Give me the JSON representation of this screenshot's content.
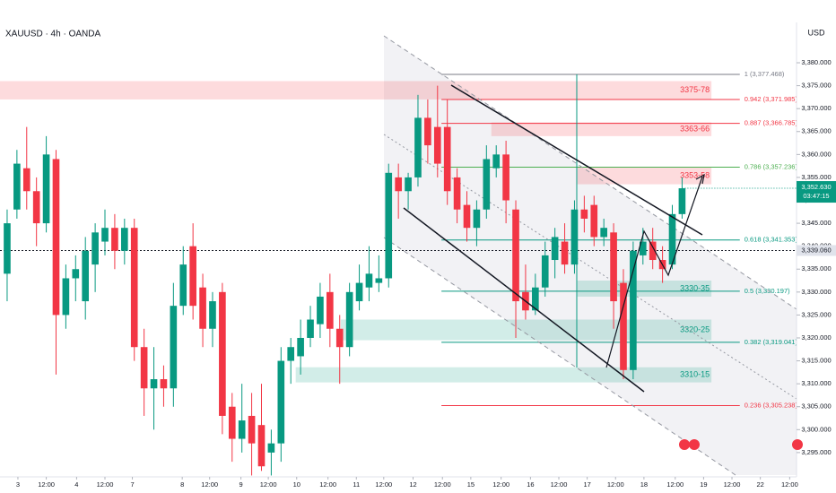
{
  "header": {
    "symbol": "XAUUSD · 4h · OANDA",
    "currency": "USD"
  },
  "chart_data": {
    "type": "candlestick",
    "x": [
      0,
      1,
      2,
      3,
      4,
      5,
      6,
      7,
      8,
      9,
      10,
      11,
      12,
      13,
      14,
      15,
      16,
      17,
      18,
      19,
      20,
      21,
      22,
      23,
      24,
      25,
      26,
      27,
      28,
      29,
      30,
      31,
      32,
      33,
      34,
      35,
      36,
      37,
      38,
      39,
      40,
      41,
      42,
      43,
      44,
      45,
      46,
      47,
      48,
      49,
      50,
      51,
      52,
      53,
      54,
      55,
      56,
      57,
      58,
      59,
      60,
      61,
      62,
      63,
      64,
      65,
      66,
      67,
      68,
      69
    ],
    "open": [
      3334,
      3348,
      3357,
      3352,
      3345,
      3359,
      3325,
      3333,
      3328,
      3336,
      3341,
      3344,
      3339,
      3344,
      3318,
      3309,
      3311,
      3309,
      3327,
      3340,
      3331,
      3322,
      3330,
      3305,
      3298,
      3303,
      3301,
      3295,
      3297,
      3315,
      3316,
      3320,
      3323,
      3330,
      3322,
      3318,
      3328,
      3331,
      3332,
      3333,
      3355,
      3352,
      3355,
      3368,
      3366,
      3366,
      3355,
      3349,
      3344,
      3348,
      3357,
      3360,
      3348,
      3330,
      3326,
      3331,
      3337,
      3341,
      3336,
      3348,
      3349,
      3342,
      3343,
      3332,
      3313,
      3338,
      3341,
      3337,
      3336,
      3347
    ],
    "high": [
      3348,
      3361,
      3366,
      3355,
      3364,
      3361,
      3336,
      3338,
      3342,
      3345,
      3348,
      3347,
      3346,
      3346,
      3322,
      3318,
      3314,
      3332,
      3340,
      3345,
      3334,
      3330,
      3332,
      3308,
      3310,
      3308,
      3310,
      3300,
      3318,
      3320,
      3324,
      3327,
      3332,
      3334,
      3325,
      3332,
      3336,
      3340,
      3338,
      3358,
      3358,
      3356,
      3373,
      3372,
      3375,
      3372,
      3357,
      3352,
      3350,
      3362,
      3362,
      3363,
      3350,
      3336,
      3334,
      3341,
      3344,
      3345,
      3350,
      3351,
      3351,
      3346,
      3345,
      3335,
      3341,
      3344,
      3344,
      3340,
      3349,
      3355
    ],
    "low": [
      3328,
      3346,
      3348,
      3340,
      3343,
      3312,
      3322,
      3328,
      3324,
      3330,
      3338,
      3335,
      3336,
      3315,
      3303,
      3300,
      3305,
      3305,
      3325,
      3324,
      3318,
      3318,
      3299,
      3293,
      3295,
      3290,
      3291,
      3290,
      3293,
      3310,
      3312,
      3318,
      3320,
      3318,
      3310,
      3316,
      3326,
      3328,
      3330,
      3331,
      3346,
      3348,
      3353,
      3358,
      3355,
      3349,
      3345,
      3341,
      3340,
      3346,
      3355,
      3345,
      3320,
      3324,
      3325,
      3329,
      3333,
      3334,
      3334,
      3343,
      3340,
      3340,
      3322,
      3311,
      3311,
      3336,
      3335,
      3332,
      3335,
      3346
    ],
    "close": [
      3345,
      3358,
      3352,
      3345,
      3360,
      3325,
      3333,
      3335,
      3339,
      3343,
      3344,
      3339,
      3344,
      3318,
      3309,
      3311,
      3309,
      3327,
      3336,
      3327,
      3322,
      3328,
      3303,
      3298,
      3302,
      3297,
      3292,
      3297,
      3315,
      3318,
      3320,
      3324,
      3329,
      3322,
      3318,
      3330,
      3332,
      3334,
      3333,
      3356,
      3352,
      3355,
      3368,
      3362,
      3358,
      3352,
      3348,
      3344,
      3348,
      3359,
      3360,
      3350,
      3328,
      3326,
      3331,
      3338,
      3342,
      3336,
      3348,
      3346,
      3342,
      3344,
      3328,
      3313,
      3339,
      3341,
      3337,
      3335,
      3347,
      3352.63
    ],
    "up_color": "#089981",
    "down_color": "#f23645",
    "xlim": [
      -0.73,
      80.7
    ],
    "ylim": [
      3289.7,
      3388.8
    ],
    "xticks": [
      {
        "value": 1.1,
        "label": "3"
      },
      {
        "value": 4.0,
        "label": "12:00"
      },
      {
        "value": 7.1,
        "label": "4"
      },
      {
        "value": 10,
        "label": "12:00"
      },
      {
        "value": 12.8,
        "label": "7"
      },
      {
        "value": 17.9,
        "label": "8"
      },
      {
        "value": 20.7,
        "label": "12:00"
      },
      {
        "value": 23.9,
        "label": "9"
      },
      {
        "value": 26.7,
        "label": "12:00"
      },
      {
        "value": 29.6,
        "label": "10"
      },
      {
        "value": 32.8,
        "label": "12:00"
      },
      {
        "value": 35.7,
        "label": "11"
      },
      {
        "value": 38.5,
        "label": "12:00"
      },
      {
        "value": 41.5,
        "label": "12"
      },
      {
        "value": 44.5,
        "label": "12:00"
      },
      {
        "value": 47.4,
        "label": "15"
      },
      {
        "value": 50.5,
        "label": "12:00"
      },
      {
        "value": 53.5,
        "label": "16"
      },
      {
        "value": 56.4,
        "label": "12:00"
      },
      {
        "value": 59.3,
        "label": "17"
      },
      {
        "value": 62.2,
        "label": "12:00"
      },
      {
        "value": 65.1,
        "label": "18"
      },
      {
        "value": 68.3,
        "label": "12:00"
      },
      {
        "value": 71.2,
        "label": "19"
      },
      {
        "value": 74.1,
        "label": "12:00"
      },
      {
        "value": 77,
        "label": "22"
      },
      {
        "value": 80,
        "label": "12:00"
      }
    ],
    "yticks": [
      {
        "value": 3295,
        "label": "3,295.000"
      },
      {
        "value": 3300,
        "label": "3,300.000"
      },
      {
        "value": 3305,
        "label": "3,305.000"
      },
      {
        "value": 3310,
        "label": "3,310.000"
      },
      {
        "value": 3315,
        "label": "3,315.000"
      },
      {
        "value": 3320,
        "label": "3,320.000"
      },
      {
        "value": 3325,
        "label": "3,325.000"
      },
      {
        "value": 3330,
        "label": "3,330.000"
      },
      {
        "value": 3335,
        "label": "3,335.000"
      },
      {
        "value": 3340,
        "label": "3,340.000"
      },
      {
        "value": 3345,
        "label": "3,345.000"
      },
      {
        "value": 3350,
        "label": "3,350.000"
      },
      {
        "value": 3355,
        "label": "3,355.000"
      },
      {
        "value": 3360,
        "label": "3,360.000"
      },
      {
        "value": 3365,
        "label": "3,365.000"
      },
      {
        "value": 3370,
        "label": "3,370.000"
      },
      {
        "value": 3375,
        "label": "3,375.000"
      },
      {
        "value": 3380,
        "label": "3,380.000"
      }
    ],
    "zones": [
      {
        "label": "3375-78",
        "range": [
          3372,
          3376
        ],
        "x": [
          -0.73,
          72
        ],
        "color": "#f23645"
      },
      {
        "label": "3363-66",
        "range": [
          3364,
          3367
        ],
        "x": [
          49.5,
          72
        ],
        "color": "#f23645"
      },
      {
        "label": "3353-58",
        "range": [
          3353.5,
          3357.2
        ],
        "x": [
          58.3,
          72
        ],
        "color": "#f23645"
      },
      {
        "label": "3330-35",
        "range": [
          3329,
          3332.5
        ],
        "x": [
          58.3,
          72
        ],
        "color": "#089981"
      },
      {
        "label": "3320-25",
        "range": [
          3319.5,
          3324
        ],
        "x": [
          34.1,
          72
        ],
        "color": "#089981"
      },
      {
        "label": "3310-15",
        "range": [
          3310.3,
          3313.6
        ],
        "x": [
          29.5,
          72
        ],
        "color": "#089981"
      }
    ],
    "fib_x": [
      44.4,
      74.9
    ],
    "fib_levels": [
      {
        "label": "1 (3,377.468)",
        "value": 3377.468,
        "color": "#787b86"
      },
      {
        "label": "0.942 (3,371.985)",
        "value": 3371.985,
        "color": "#f23645"
      },
      {
        "label": "0.887 (3,366.785)",
        "value": 3366.785,
        "color": "#f23645"
      },
      {
        "label": "0.786 (3,357.236)",
        "value": 3357.236,
        "color": "#4caf50"
      },
      {
        "label": "0.618 (3,341.353)",
        "value": 3341.353,
        "color": "#089981"
      },
      {
        "label": "0.5 (3,330.197)",
        "value": 3330.197,
        "color": "#089981"
      },
      {
        "label": "0.382 (3,319.041)",
        "value": 3319.041,
        "color": "#089981"
      },
      {
        "label": "0.236 (3,305.238)",
        "value": 3305.238,
        "color": "#f23645"
      }
    ],
    "last_price": {
      "value": 3352.63,
      "label": "3,352.630",
      "countdown": "03:47:15",
      "color": "#089981"
    },
    "ref_price": {
      "value": 3339.06,
      "label": "3,339.060"
    }
  }
}
